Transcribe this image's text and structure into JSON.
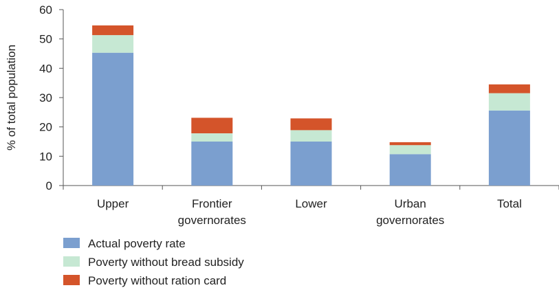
{
  "chart_data": {
    "type": "bar",
    "stacked": true,
    "categories": [
      "Upper",
      "Frontier governorates",
      "Lower",
      "Urban governorates",
      "Total"
    ],
    "category_lines": [
      [
        "Upper"
      ],
      [
        "Frontier",
        "governorates"
      ],
      [
        "Lower"
      ],
      [
        "Urban",
        "governorates"
      ],
      [
        "Total"
      ]
    ],
    "series": [
      {
        "name": "Actual poverty rate",
        "color": "#7b9fcf",
        "values": [
          45.3,
          15.0,
          15.0,
          10.7,
          25.6
        ]
      },
      {
        "name": "Poverty without bread subsidy",
        "color": "#c6e8d3",
        "values": [
          6.0,
          2.8,
          3.9,
          3.1,
          5.9
        ]
      },
      {
        "name": "Poverty without ration card",
        "color": "#d4542a",
        "values": [
          3.3,
          5.3,
          4.0,
          1.0,
          3.0
        ]
      }
    ],
    "title": "",
    "xlabel": "",
    "ylabel": "% of total population",
    "ylim": [
      0,
      60
    ],
    "yticks": [
      0,
      10,
      20,
      30,
      40,
      50,
      60
    ],
    "grid": false,
    "legend_position": "bottom-left"
  }
}
